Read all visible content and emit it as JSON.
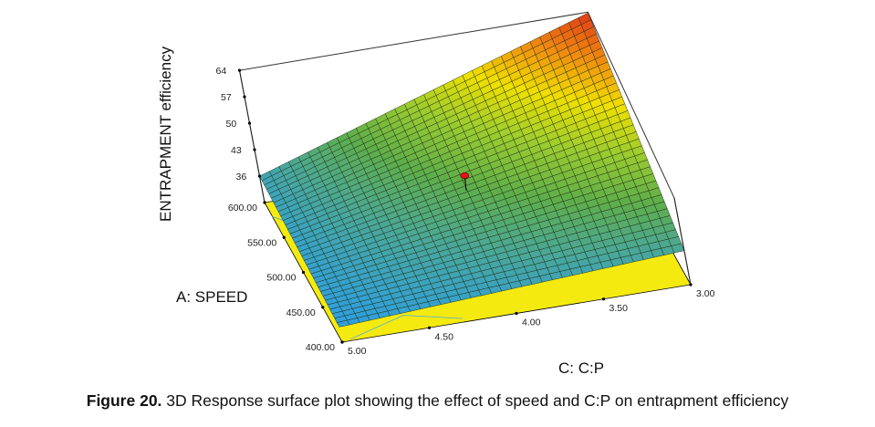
{
  "chart_data": {
    "type": "surface3d",
    "title": "",
    "zlabel": "ENTRAPMENT efficiency",
    "xlabel": "A: SPEED",
    "ylabel": "C: C:P",
    "z_ticks": [
      "36",
      "43",
      "50",
      "57",
      "64"
    ],
    "z_tick_values": [
      36,
      43,
      50,
      57,
      64
    ],
    "a_ticks": [
      "400.00",
      "450.00",
      "500.00",
      "550.00",
      "600.00"
    ],
    "a_tick_values": [
      400,
      450,
      500,
      550,
      600
    ],
    "c_ticks": [
      "3.00",
      "3.50",
      "4.00",
      "4.50",
      "5.00"
    ],
    "c_tick_values": [
      3.0,
      3.5,
      4.0,
      4.5,
      5.0
    ],
    "a_range": [
      400,
      600
    ],
    "c_range": [
      3.0,
      5.0
    ],
    "z_range": [
      29,
      64
    ],
    "surface_corners": [
      {
        "A": 600,
        "C": 5.0,
        "Z": 36
      },
      {
        "A": 600,
        "C": 3.0,
        "Z": 64
      },
      {
        "A": 400,
        "C": 3.0,
        "Z": 38
      },
      {
        "A": 400,
        "C": 5.0,
        "Z": 33
      }
    ],
    "design_point": {
      "A": 500,
      "C": 4.0,
      "Z": 47
    },
    "colormap": [
      "#2f9fe0",
      "#4aa79a",
      "#5fae4a",
      "#9ccc2f",
      "#f0e000",
      "#f08a10",
      "#e03818"
    ],
    "floor_color": "#f5ea10",
    "floor_contour_color": "#5ab4c8"
  },
  "caption": {
    "label": "Figure 20.",
    "text": " 3D Response surface plot showing the effect of speed and C:P on entrapment efficiency"
  }
}
